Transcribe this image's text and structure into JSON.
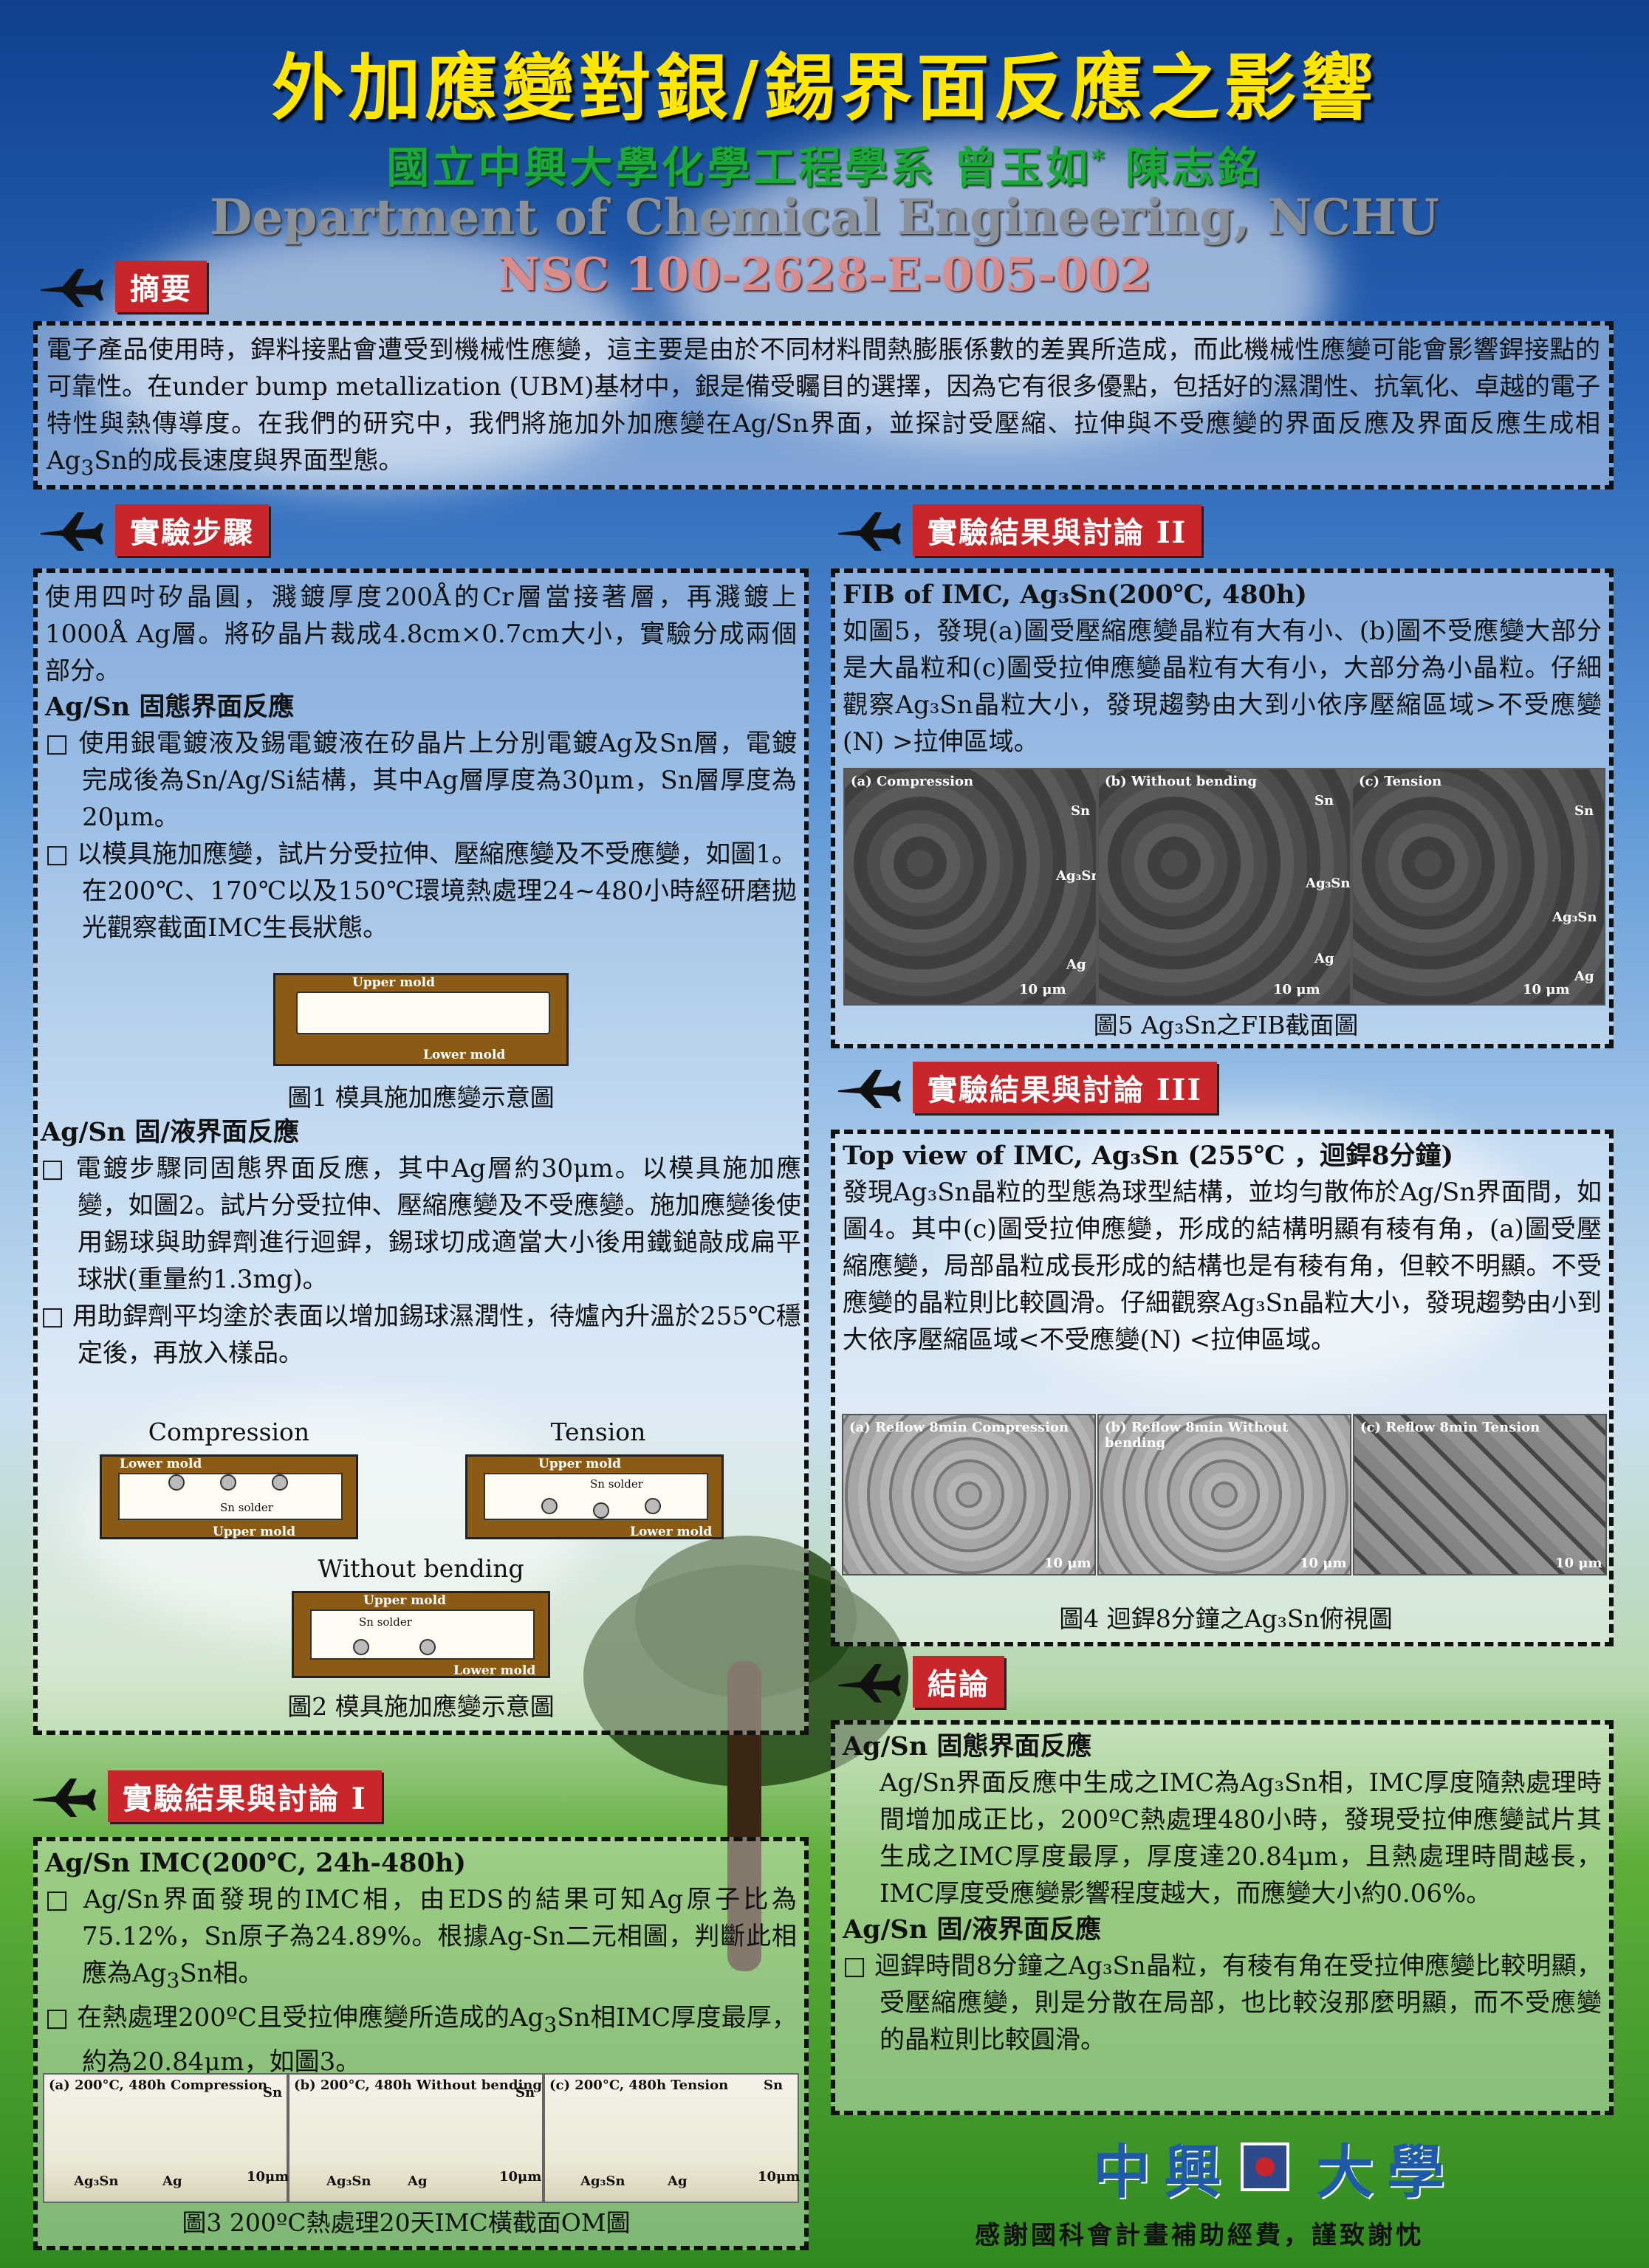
{
  "header": {
    "title": "外加應變對銀/錫界面反應之影響",
    "authors": "國立中興大學化學工程學系 曾玉如",
    "author_mark": "*",
    "authors_b": " 陳志銘",
    "department": "Department of Chemical Engineering, NCHU",
    "grant": "NSC 100-2628-E-005-002"
  },
  "abstract": {
    "label": "摘要",
    "text": "電子產品使用時，銲料接點會遭受到機械性應變，這主要是由於不同材料間熱膨脹係數的差異所造成，而此機械性應變可能會影響銲接點的可靠性。在under bump metallization (UBM)基材中，銀是備受矚目的選擇，因為它有很多優點，包括好的濕潤性、抗氧化、卓越的電子特性與熱傳導度。在我們的研究中，我們將施加外加應變在Ag/Sn界面，並探討受壓縮、拉伸與不受應變的界面反應及界面反應生成相Ag",
    "text_sub": "3",
    "text_end": "Sn的成長速度與界面型態。"
  },
  "method": {
    "label": "實驗步驟",
    "intro": "使用四吋矽晶圓，濺鍍厚度200Å的Cr層當接著層，再濺鍍上1000Å Ag層。將矽晶片裁成4.8cm×0.7cm大小，實驗分成兩個部分。",
    "sub1": "Ag/Sn 固態界面反應",
    "b1": "□ 使用銀電鍍液及錫電鍍液在矽晶片上分別電鍍Ag及Sn層，電鍍完成後為Sn/Ag/Si結構，其中Ag層厚度為30μm，Sn層厚度為20μm。",
    "b2": "□ 以模具施加應變，試片分受拉伸、壓縮應變及不受應變，如圖1。在200℃、170℃以及150℃環境熱處理24~480小時經研磨拋光觀察截面IMC生長狀態。",
    "fig1_upper": "Upper mold",
    "fig1_lower": "Lower mold",
    "fig1_cap": "圖1 模具施加應變示意圖",
    "sub2": "Ag/Sn 固/液界面反應",
    "b3": "□ 電鍍步驟同固態界面反應，其中Ag層約30μm。以模具施加應變，如圖2。試片分受拉伸、壓縮應變及不受應變。施加應變後使用錫球與助銲劑進行迴銲，錫球切成適當大小後用鐵鎚敲成扁平球狀(重量約1.3mg)。",
    "b4": "□ 用助銲劑平均塗於表面以增加錫球濕潤性，待爐內升溫於255℃穩定後，再放入樣品。",
    "fig2_compression": "Compression",
    "fig2_tension": "Tension",
    "fig2_without": "Without bending",
    "fig2_lower_mold": "Lower mold",
    "fig2_upper_mold": "Upper mold",
    "fig2_sn_solder": "Sn solder",
    "fig2_cap": "圖2  模具施加應變示意圖"
  },
  "result1": {
    "label": "實驗結果與討論 I",
    "sub": "Ag/Sn IMC(200℃, 24h-480h)",
    "b1": "□ Ag/Sn界面發現的IMC相，由EDS的結果可知Ag原子比為75.12%，Sn原子為24.89%。根據Ag-Sn二元相圖，判斷此相應為Ag",
    "b1_sub": "3",
    "b1_end": "Sn相。",
    "b2": "□ 在熱處理200ºC且受拉伸應變所造成的Ag",
    "b2_sub": "3",
    "b2_end": "Sn相IMC厚度最厚，約為20.84μm，如圖3。",
    "om_a": "(a) 200°C, 480h Compression",
    "om_b": "(b) 200°C, 480h Without bending",
    "om_c": "(c) 200°C, 480h Tension",
    "om_sn": "Sn",
    "om_ag3sn": "Ag₃Sn",
    "om_ag": "Ag",
    "om_scale": "10μm",
    "cap": "圖3 200ºC熱處理20天IMC橫截面OM圖"
  },
  "result2": {
    "label": "實驗結果與討論 II",
    "sub": "FIB of IMC, Ag₃Sn(200℃, 480h)",
    "text": "如圖5，發現(a)圖受壓縮應變晶粒有大有小、(b)圖不受應變大部分是大晶粒和(c)圖受拉伸應變晶粒有大有小，大部分為小晶粒。仔細觀察Ag₃Sn晶粒大小，發現趨勢由大到小依序壓縮區域>不受應變(N) >拉伸區域。",
    "fib_a": "(a) Compression",
    "fib_b": "(b) Without bending",
    "fib_c": "(c) Tension",
    "fib_sn": "Sn",
    "fib_ag3sn": "Ag₃Sn",
    "fib_ag": "Ag",
    "fib_scale": "10 μm",
    "cap": "圖5 Ag₃Sn之FIB截面圖"
  },
  "result3": {
    "label": "實驗結果與討論 III",
    "sub": "Top view of IMC, Ag₃Sn (255℃ ，迴銲8分鐘)",
    "text": "發現Ag₃Sn晶粒的型態為球型結構，並均勻散佈於Ag/Sn界面間，如圖4。其中(c)圖受拉伸應變，形成的結構明顯有稜有角，(a)圖受壓縮應變，局部晶粒成長形成的結構也是有稜有角，但較不明顯。不受應變的晶粒則比較圓滑。仔細觀察Ag₃Sn晶粒大小，發現趨勢由小到大依序壓縮區域<不受應變(N) <拉伸區域。",
    "top_a": "(a) Reflow 8min Compression",
    "top_b": "(b) Reflow 8min Without bending",
    "top_c": "(c) Reflow 8min Tension",
    "top_scale": "10 μm",
    "cap": "圖4 迴銲8分鐘之Ag₃Sn俯視圖"
  },
  "conclusion": {
    "label": "結論",
    "sub1": "Ag/Sn 固態界面反應",
    "t1": "Ag/Sn界面反應中生成之IMC為Ag₃Sn相，IMC厚度隨熱處理時間增加成正比，200ºC熱處理480小時，發現受拉伸應變試片其生成之IMC厚度最厚，厚度達20.84μm，且熱處理時間越長，IMC厚度受應變影響程度越大，而應變大小約0.06%。",
    "sub2": "Ag/Sn 固/液界面反應",
    "t2": "□ 迴銲時間8分鐘之Ag₃Sn晶粒，有稜有角在受拉伸應變比較明顯，受壓縮應變，則是分散在局部，也比較沒那麼明顯，而不受應變的晶粒則比較圓滑。"
  },
  "footer": {
    "logo_left": "中興",
    "logo_right": "大學",
    "thanks": "感謝國科會計畫補助經費，謹致謝忱"
  }
}
